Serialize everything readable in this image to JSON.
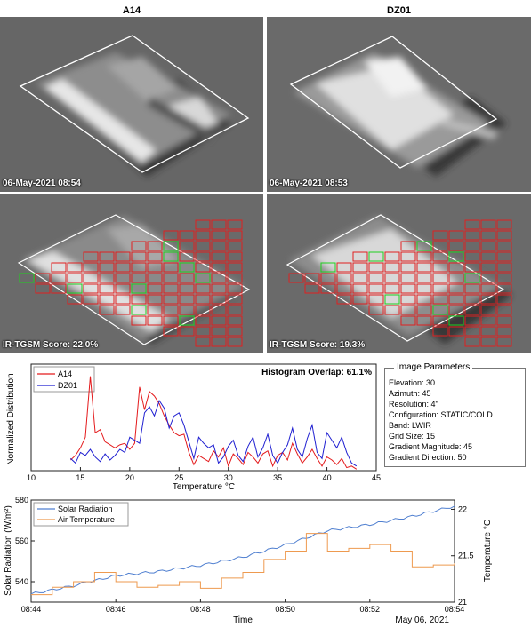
{
  "thumbnails": {
    "left_title": "A14",
    "right_title": "DZ01",
    "top_left_caption": "06-May-2021 08:54",
    "top_right_caption": "06-May-2021 08:53",
    "bottom_left_caption": "IR-TGSM Score: 22.0%",
    "bottom_right_caption": "IR-TGSM Score: 19.3%"
  },
  "image_parameters": {
    "title": "Image Parameters",
    "rows": [
      "Elevation: 30",
      "Azimuth: 45",
      "Resolution: 4\"",
      "Configuration: STATIC/COLD",
      "Band: LWIR",
      "Grid Size: 15",
      "Gradient Magnitude: 45",
      "Gradient Direction: 50"
    ]
  },
  "colors": {
    "a14": "#e41a1c",
    "dz01": "#1f1fd1",
    "solar": "#4f7fd0",
    "air": "#ee9a4f",
    "grid_red": "#e02020",
    "grid_green": "#20d020"
  },
  "chart_data": [
    {
      "type": "line",
      "title": "Histogram Overlap: 61.1%",
      "xlabel": "Temperature °C",
      "ylabel": "Normalized Distribution",
      "xlim": [
        10,
        45
      ],
      "xticks": [
        "10",
        "15",
        "20",
        "25",
        "30",
        "35",
        "40",
        "45"
      ],
      "legend": "top-left",
      "series": [
        {
          "name": "A14",
          "color": "#e41a1c",
          "x": [
            14.0,
            14.5,
            15.0,
            15.5,
            16.0,
            16.5,
            17.0,
            17.5,
            18.0,
            18.5,
            19.0,
            19.5,
            20.0,
            20.5,
            21.0,
            21.5,
            22.0,
            22.5,
            23.0,
            23.5,
            24.0,
            24.5,
            25.0,
            25.5,
            26.0,
            26.5,
            27.0,
            27.5,
            28.0,
            28.5,
            29.0,
            29.5,
            30.0,
            30.5,
            31.0,
            31.5,
            32.0,
            32.5,
            33.0,
            33.5,
            34.0,
            34.5,
            35.0,
            35.5,
            36.0,
            36.5,
            37.0,
            37.5,
            38.0,
            38.5,
            39.0,
            39.5,
            40.0,
            40.5,
            41.0,
            41.5,
            42.0,
            42.5,
            43.0
          ],
          "y": [
            0.07,
            0.1,
            0.15,
            0.22,
            0.62,
            0.25,
            0.27,
            0.19,
            0.17,
            0.15,
            0.17,
            0.18,
            0.14,
            0.18,
            0.55,
            0.4,
            0.52,
            0.49,
            0.44,
            0.36,
            0.3,
            0.25,
            0.23,
            0.24,
            0.12,
            0.04,
            0.1,
            0.08,
            0.06,
            0.13,
            0.09,
            0.15,
            0.03,
            0.11,
            0.08,
            0.04,
            0.12,
            0.09,
            0.05,
            0.11,
            0.13,
            0.03,
            0.1,
            0.12,
            0.07,
            0.18,
            0.11,
            0.05,
            0.09,
            0.14,
            0.08,
            0.03,
            0.09,
            0.07,
            0.04,
            0.08,
            0.02,
            0.03,
            0.01
          ]
        },
        {
          "name": "DZ01",
          "color": "#1f1fd1",
          "x": [
            14.0,
            14.5,
            15.0,
            15.5,
            16.0,
            16.5,
            17.0,
            17.5,
            18.0,
            18.5,
            19.0,
            19.5,
            20.0,
            20.5,
            21.0,
            21.5,
            22.0,
            22.5,
            23.0,
            23.5,
            24.0,
            24.5,
            25.0,
            25.5,
            26.0,
            26.5,
            27.0,
            27.5,
            28.0,
            28.5,
            29.0,
            29.5,
            30.0,
            30.5,
            31.0,
            31.5,
            32.0,
            32.5,
            33.0,
            33.5,
            34.0,
            34.5,
            35.0,
            35.5,
            36.0,
            36.5,
            37.0,
            37.5,
            38.0,
            38.5,
            39.0,
            39.5,
            40.0,
            40.5,
            41.0,
            41.5,
            42.0,
            42.5,
            43.0
          ],
          "y": [
            0.08,
            0.05,
            0.12,
            0.1,
            0.14,
            0.09,
            0.06,
            0.11,
            0.07,
            0.1,
            0.14,
            0.12,
            0.22,
            0.2,
            0.18,
            0.38,
            0.42,
            0.36,
            0.46,
            0.41,
            0.28,
            0.36,
            0.38,
            0.3,
            0.19,
            0.08,
            0.22,
            0.18,
            0.15,
            0.17,
            0.05,
            0.09,
            0.16,
            0.2,
            0.1,
            0.06,
            0.16,
            0.22,
            0.09,
            0.15,
            0.24,
            0.1,
            0.05,
            0.12,
            0.17,
            0.28,
            0.14,
            0.09,
            0.21,
            0.3,
            0.12,
            0.08,
            0.25,
            0.2,
            0.15,
            0.22,
            0.12,
            0.05,
            0.03
          ]
        }
      ]
    },
    {
      "type": "line",
      "xlabel": "Time",
      "ylabel_left": "Solar Radiation (W/m²)",
      "ylabel_right": "Temperature °C",
      "date_label": "May 06, 2021",
      "xlim": [
        "08:44",
        "08:54"
      ],
      "xticks": [
        "08:44",
        "08:46",
        "08:48",
        "08:50",
        "08:52",
        "08:54"
      ],
      "ylim_left": [
        530,
        580
      ],
      "yticks_left": [
        "540",
        "560",
        "580"
      ],
      "ylim_right": [
        21,
        22.1
      ],
      "yticks_right": [
        "21",
        "21.5",
        "22"
      ],
      "legend": "top-left",
      "series": [
        {
          "name": "Solar Radiation",
          "axis": "left",
          "color": "#4f7fd0",
          "x": [
            "08:44",
            "08:45",
            "08:46",
            "08:47",
            "08:48",
            "08:49",
            "08:50",
            "08:51",
            "08:52",
            "08:53",
            "08:54"
          ],
          "y": [
            534,
            538,
            543,
            545,
            548,
            552,
            558,
            565,
            568,
            572,
            577
          ]
        },
        {
          "name": "Air Temperature",
          "axis": "right",
          "color": "#ee9a4f",
          "x": [
            "08:44",
            "08:44:30",
            "08:45",
            "08:45:30",
            "08:46",
            "08:46:30",
            "08:47",
            "08:47:30",
            "08:48",
            "08:48:30",
            "08:49",
            "08:49:30",
            "08:50",
            "08:50:30",
            "08:51",
            "08:51:30",
            "08:52",
            "08:52:30",
            "08:53",
            "08:53:30",
            "08:54"
          ],
          "y": [
            21.08,
            21.16,
            21.22,
            21.32,
            21.22,
            21.16,
            21.18,
            21.22,
            21.15,
            21.26,
            21.32,
            21.46,
            21.55,
            21.74,
            21.55,
            21.58,
            21.62,
            21.55,
            21.38,
            21.4,
            21.42
          ]
        }
      ]
    }
  ]
}
